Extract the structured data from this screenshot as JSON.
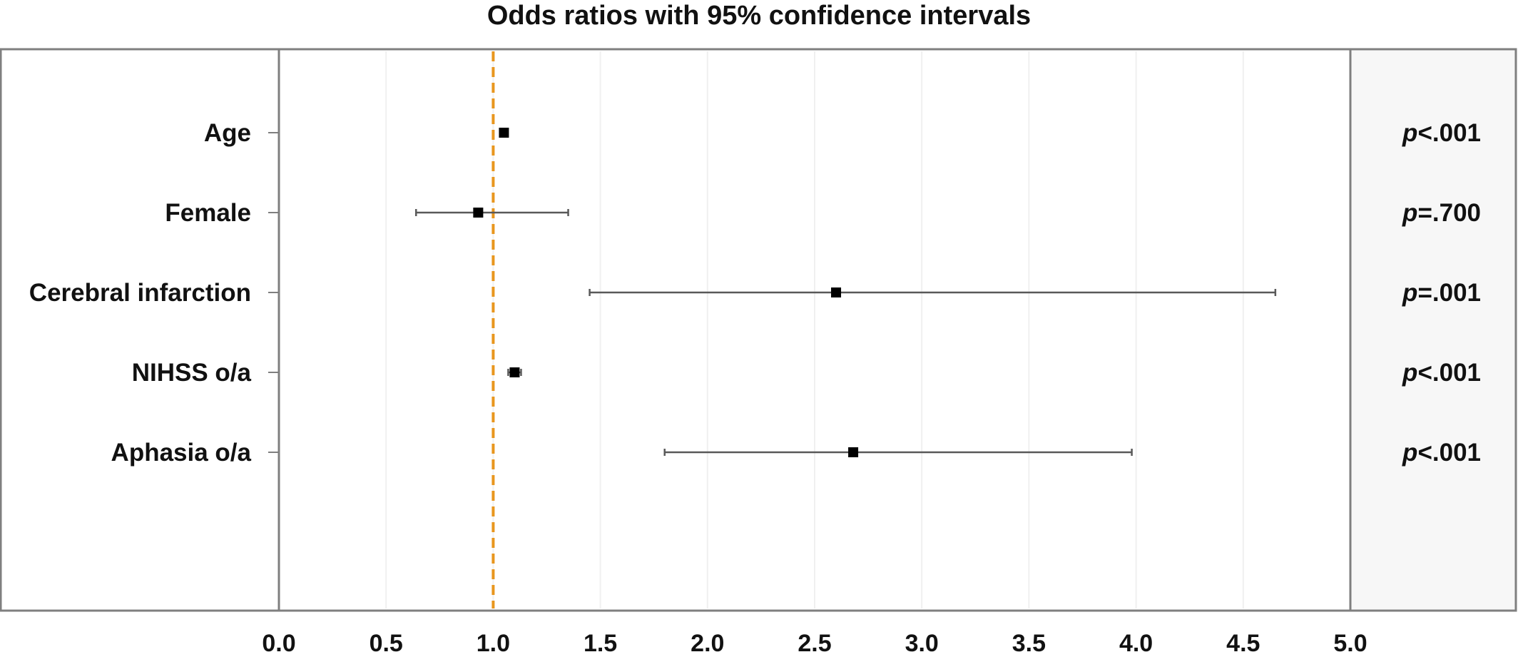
{
  "chart_data": {
    "type": "forest",
    "title": "Odds ratios with 95% confidence intervals",
    "xlim": [
      0.0,
      5.0
    ],
    "xticks": [
      "0.0",
      "0.5",
      "1.0",
      "1.5",
      "2.0",
      "2.5",
      "3.0",
      "3.5",
      "4.0",
      "4.5",
      "5.0"
    ],
    "reference_line": 1.0,
    "reference_color": "#e8961e",
    "rows": [
      {
        "label": "Age",
        "or": 1.05,
        "ci_low": 1.04,
        "ci_high": 1.06,
        "p_prefix": "p",
        "p_text": "<.001"
      },
      {
        "label": "Female",
        "or": 0.93,
        "ci_low": 0.64,
        "ci_high": 1.35,
        "p_prefix": "p",
        "p_text": "=.700"
      },
      {
        "label": "Cerebral infarction",
        "or": 2.6,
        "ci_low": 1.45,
        "ci_high": 4.65,
        "p_prefix": "p",
        "p_text": "=.001"
      },
      {
        "label": "NIHSS o/a",
        "or": 1.1,
        "ci_low": 1.07,
        "ci_high": 1.13,
        "p_prefix": "p",
        "p_text": "<.001"
      },
      {
        "label": "Aphasia o/a",
        "or": 2.68,
        "ci_low": 1.8,
        "ci_high": 3.98,
        "p_prefix": "p",
        "p_text": "<.001"
      }
    ],
    "grid": true
  }
}
